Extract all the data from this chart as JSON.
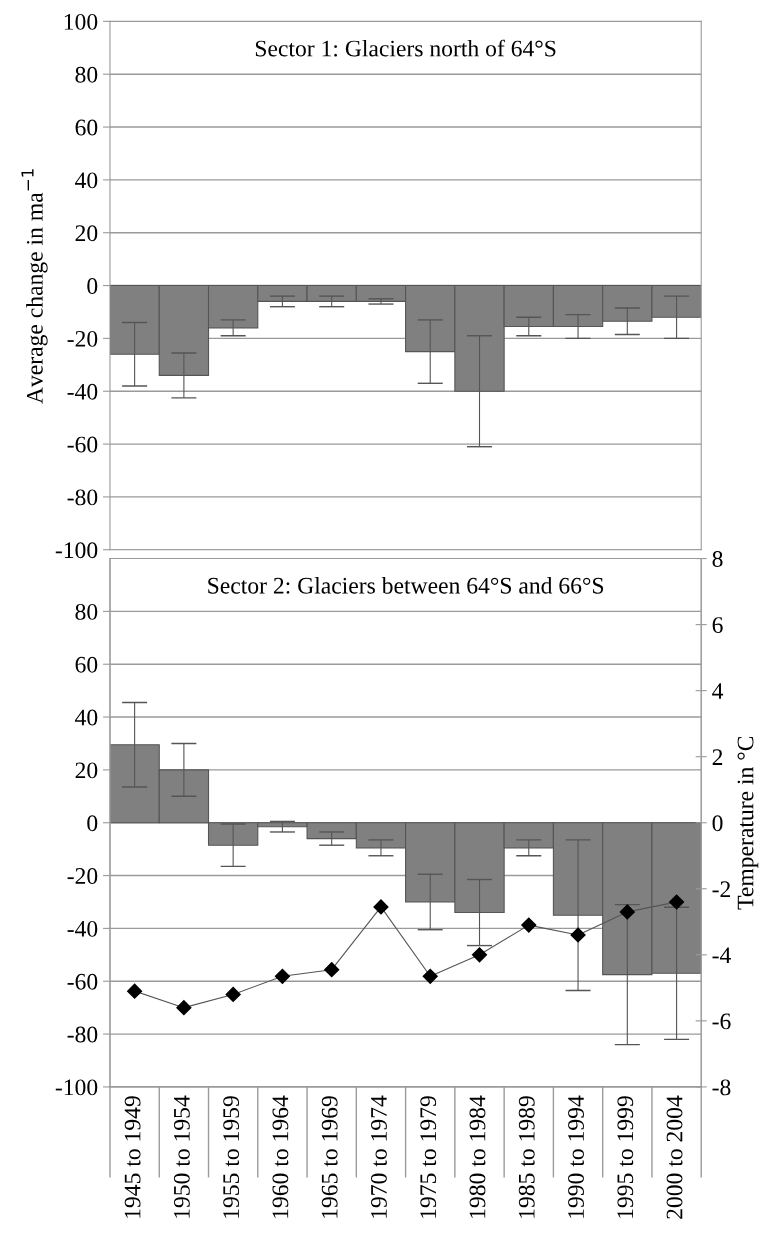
{
  "chart_data": [
    {
      "type": "bar",
      "title": "Sector 1: Glaciers north of 64°S",
      "ylabel": "Average change in ma$^{−1}$",
      "categories": [
        null,
        null,
        null,
        null,
        null,
        null,
        null,
        null,
        null,
        null,
        null,
        null
      ],
      "series": [
        {
          "color": "#808080",
          "values": [
            -26,
            -34,
            -16,
            -6,
            -6,
            -6,
            -25,
            -40,
            -15.5,
            -15.5,
            -13.5,
            -12
          ],
          "errors": [
            12,
            8.5,
            3,
            2,
            2,
            1,
            12,
            21,
            3.5,
            4.5,
            5,
            8
          ]
        }
      ],
      "ylim": [
        -100,
        100
      ],
      "yticks": [
        -100,
        -80,
        -60,
        -40,
        -20,
        0,
        20,
        40,
        60,
        80,
        100
      ],
      "grid": "y",
      "tick_labels": "y"
    },
    {
      "type": "bar",
      "title": "Sector 2: Glaciers between 64°S and 66°S",
      "y2label": "Temperature in °C",
      "categories": [
        "1945 to 1949",
        "1950 to 1954",
        "1955 to 1959",
        "1960 to 1964",
        "1965 to 1969",
        "1970 to 1974",
        "1975 to 1979",
        "1980 to 1984",
        "1985 to 1989",
        "1990 to 1994",
        "1995 to 1999",
        "2000 to 2004"
      ],
      "series": [
        {
          "color": "#808080",
          "values": [
            29.5,
            20,
            -8.5,
            -1.5,
            -6,
            -9.5,
            -30,
            -34,
            -9.5,
            -35,
            -57.5,
            -57
          ],
          "errors": [
            16,
            10,
            8,
            2,
            2.5,
            3,
            10.5,
            12.5,
            3,
            28.5,
            26.5,
            25
          ]
        },
        {
          "type": "line",
          "axis": "y2",
          "color": "#000000",
          "marker": "diamond",
          "line_style": "solid",
          "values": [
            -5.1,
            -5.6,
            -5.2,
            -4.65,
            -4.45,
            -2.55,
            -4.65,
            -4.0,
            -3.1,
            -3.4,
            -2.7,
            -2.4
          ]
        }
      ],
      "ylim": [
        -100,
        100
      ],
      "yticks": [
        -100,
        -80,
        -60,
        -40,
        -20,
        0,
        20,
        40,
        60,
        80
      ],
      "y2lim": [
        -8,
        8
      ],
      "y2ticks": [
        -8,
        -6,
        -4,
        -2,
        0,
        2,
        4,
        6,
        8
      ],
      "grid": "y"
    }
  ]
}
